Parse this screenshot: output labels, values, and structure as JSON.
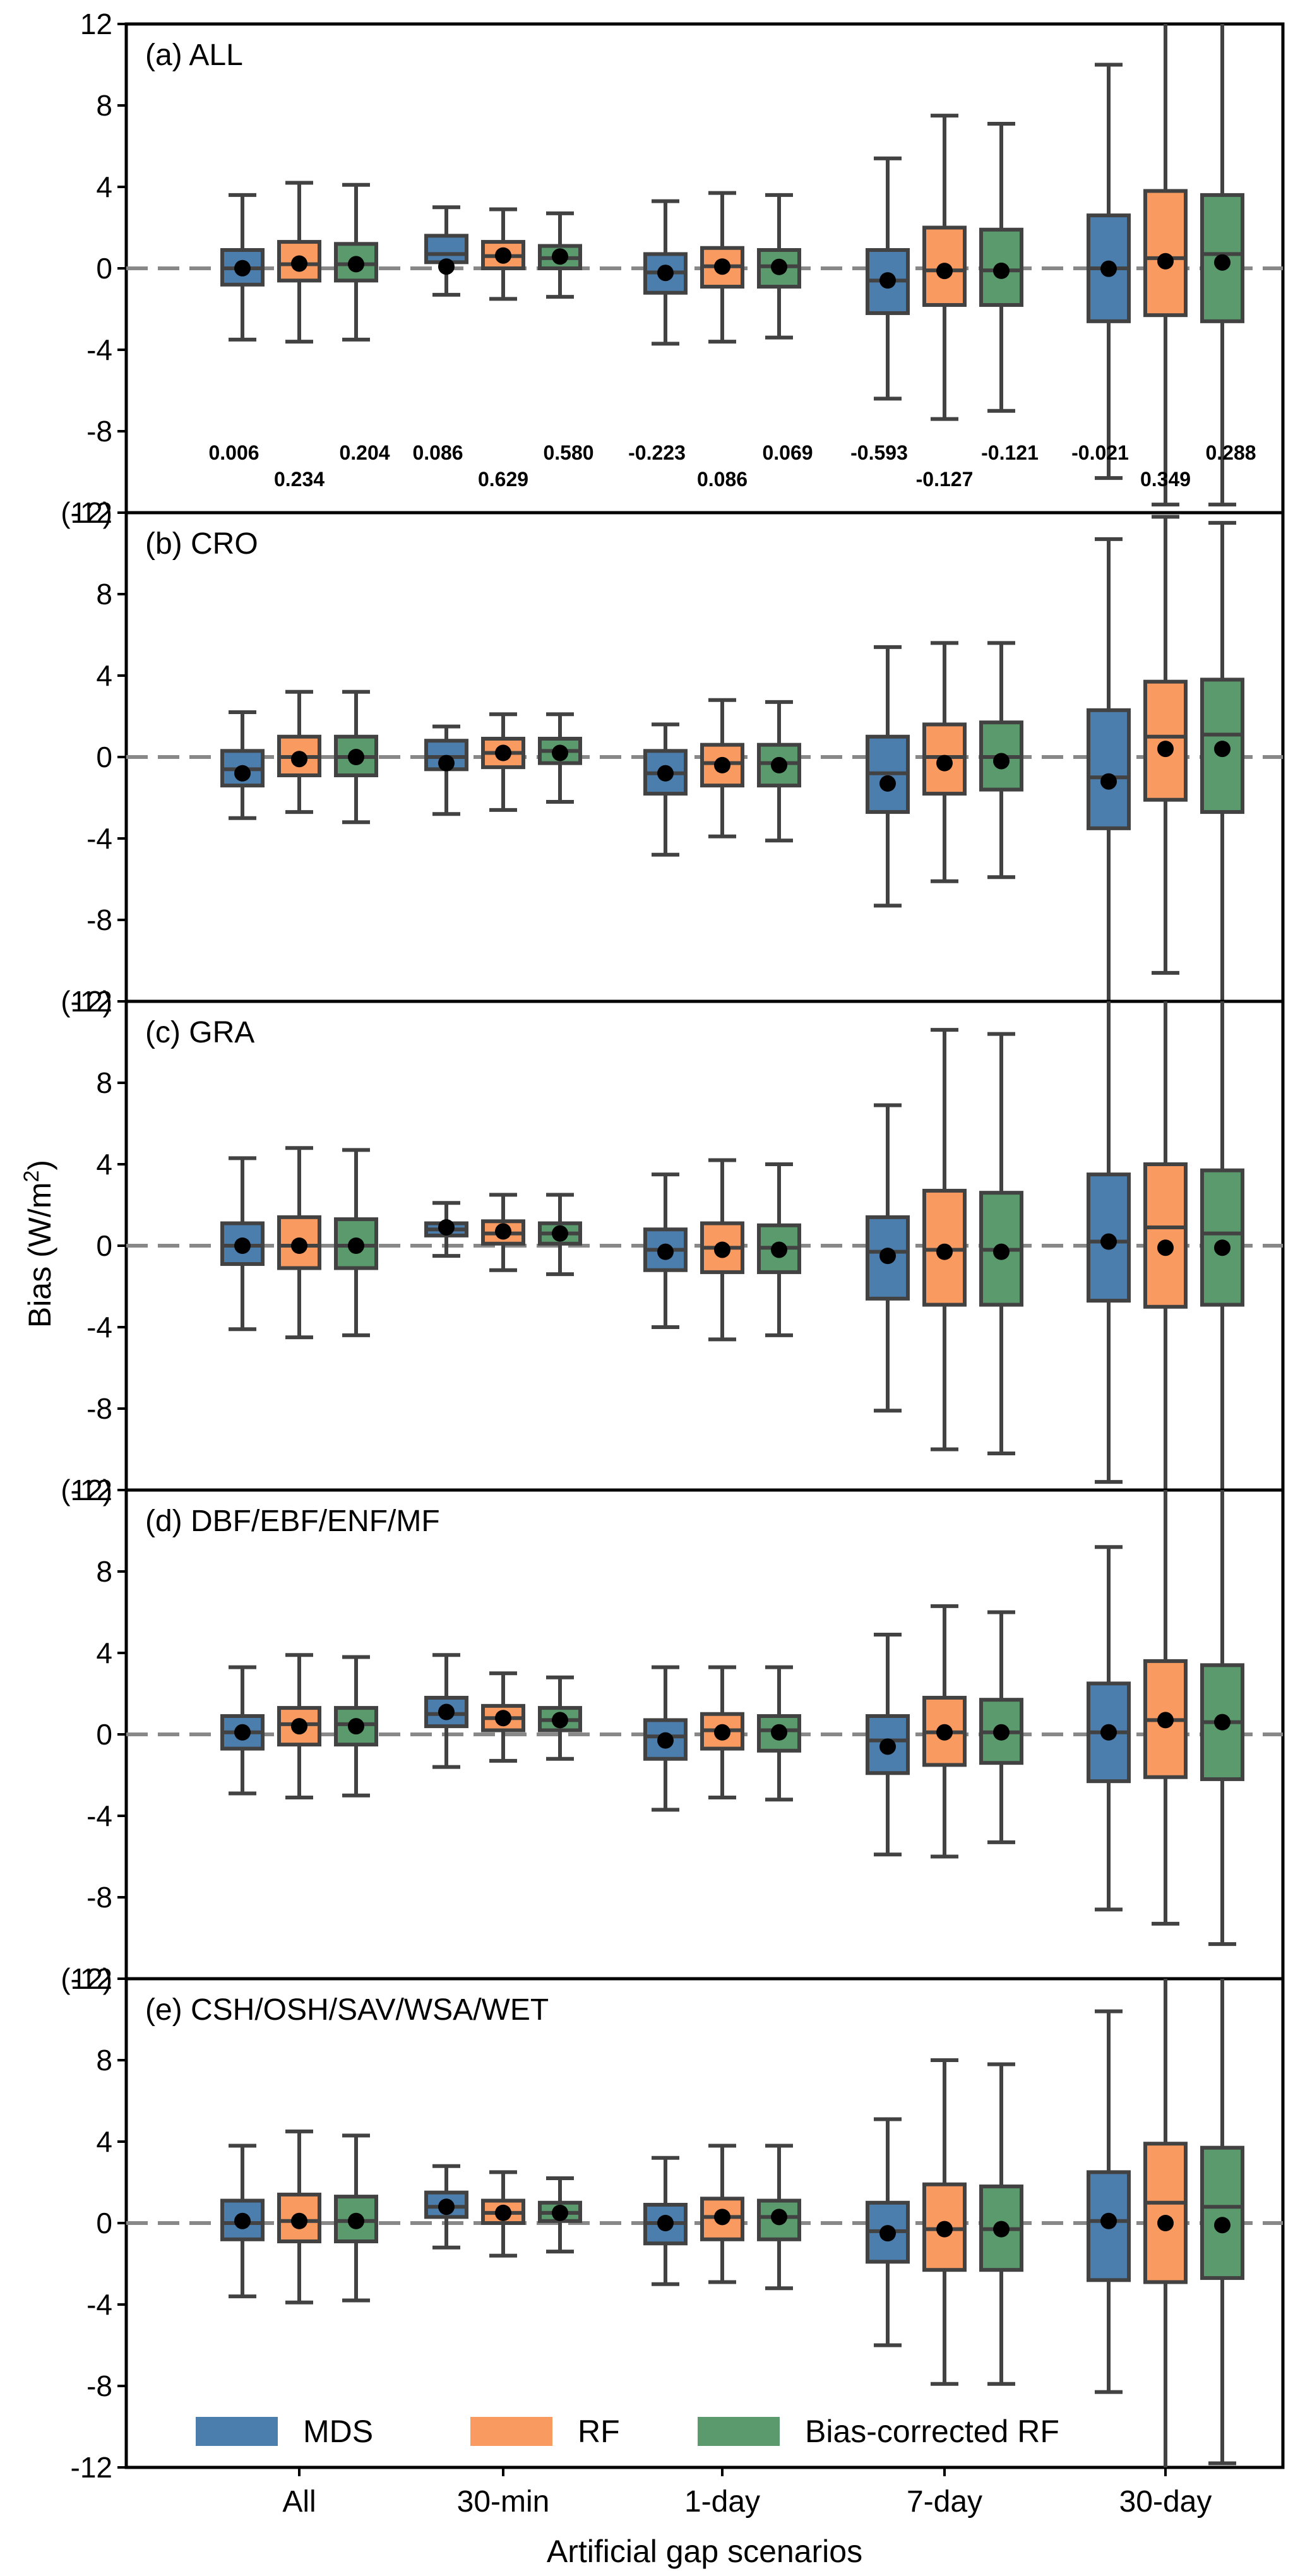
{
  "figure": {
    "xlabel": "Artificial gap scenarios",
    "ylabel_main": "Bias (W/m",
    "ylabel_sup": "2",
    "ylabel_close": ")"
  },
  "legend": [
    {
      "label": "MDS",
      "color": "#4c7ead"
    },
    {
      "label": "RF",
      "color": "#f99a60"
    },
    {
      "label": "Bias-corrected RF",
      "color": "#5a9a6c"
    }
  ],
  "colors": {
    "MDS": "#4c7ead",
    "RF": "#f99a60",
    "Bias-corrected RF": "#5a9a6c",
    "box_edge": "#424242",
    "zero_line": "#888888",
    "mean_marker": "#000000"
  },
  "chart_data": [
    {
      "type": "box",
      "title": "(a) ALL",
      "ytick_labels": [
        "-12",
        "-8",
        "-4",
        "0",
        "4",
        "8",
        "12"
      ],
      "ylim": [
        -12,
        12
      ],
      "categories": [
        "All",
        "30-min",
        "1-day",
        "7-day",
        "30-day"
      ],
      "series_names": [
        "MDS",
        "RF",
        "Bias-corrected RF"
      ],
      "boxes": [
        [
          [
            -3.5,
            -0.8,
            0.0,
            0.9,
            3.6,
            0.006
          ],
          [
            -3.6,
            -0.6,
            0.2,
            1.3,
            4.2,
            0.234
          ],
          [
            -3.5,
            -0.6,
            0.2,
            1.2,
            4.1,
            0.204
          ]
        ],
        [
          [
            -1.3,
            0.3,
            0.7,
            1.6,
            3.0,
            0.086
          ],
          [
            -1.5,
            0.0,
            0.6,
            1.3,
            2.9,
            0.629
          ],
          [
            -1.4,
            0.0,
            0.5,
            1.1,
            2.7,
            0.58
          ]
        ],
        [
          [
            -3.7,
            -1.2,
            -0.2,
            0.7,
            3.3,
            -0.223
          ],
          [
            -3.6,
            -0.9,
            0.1,
            1.0,
            3.7,
            0.086
          ],
          [
            -3.4,
            -0.9,
            0.1,
            0.9,
            3.6,
            0.069
          ]
        ],
        [
          [
            -6.4,
            -2.2,
            -0.6,
            0.9,
            5.4,
            -0.593
          ],
          [
            -7.4,
            -1.8,
            -0.1,
            2.0,
            7.5,
            -0.127
          ],
          [
            -7.0,
            -1.8,
            -0.1,
            1.9,
            7.1,
            -0.121
          ]
        ],
        [
          [
            -10.3,
            -2.6,
            0.0,
            2.6,
            10.0,
            -0.021
          ],
          [
            -11.6,
            -2.3,
            0.5,
            3.8,
            12.5,
            0.349
          ],
          [
            -11.6,
            -2.6,
            0.7,
            3.6,
            12.5,
            0.288
          ]
        ]
      ],
      "mean_labels": [
        [
          "0.006",
          "0.234",
          "0.204"
        ],
        [
          "0.086",
          "0.629",
          "0.580"
        ],
        [
          "-0.223",
          "0.086",
          "0.069"
        ],
        [
          "-0.593",
          "-0.127",
          "-0.121"
        ],
        [
          "-0.021",
          "0.349",
          "0.288"
        ]
      ]
    },
    {
      "type": "box",
      "title": "(b) CRO",
      "ytick_labels": [
        "-12",
        "-8",
        "-4",
        "0",
        "4",
        "8",
        "(12)"
      ],
      "ylim": [
        -12,
        12
      ],
      "categories": [
        "All",
        "30-min",
        "1-day",
        "7-day",
        "30-day"
      ],
      "series_names": [
        "MDS",
        "RF",
        "Bias-corrected RF"
      ],
      "boxes": [
        [
          [
            -3.0,
            -1.4,
            -0.6,
            0.3,
            2.2,
            -0.8
          ],
          [
            -2.7,
            -0.9,
            0.0,
            1.0,
            3.2,
            -0.1
          ],
          [
            -3.2,
            -0.9,
            0.0,
            1.0,
            3.2,
            0.0
          ]
        ],
        [
          [
            -2.8,
            -0.6,
            0.0,
            0.8,
            1.5,
            -0.3
          ],
          [
            -2.6,
            -0.5,
            0.2,
            0.9,
            2.1,
            0.2
          ],
          [
            -2.2,
            -0.3,
            0.3,
            0.9,
            2.1,
            0.2
          ]
        ],
        [
          [
            -4.8,
            -1.8,
            -0.8,
            0.3,
            1.6,
            -0.8
          ],
          [
            -3.9,
            -1.4,
            -0.3,
            0.6,
            2.8,
            -0.4
          ],
          [
            -4.1,
            -1.4,
            -0.3,
            0.6,
            2.7,
            -0.4
          ]
        ],
        [
          [
            -7.3,
            -2.7,
            -0.8,
            1.0,
            5.4,
            -1.3
          ],
          [
            -6.1,
            -1.8,
            0.0,
            1.6,
            5.6,
            -0.3
          ],
          [
            -5.9,
            -1.6,
            0.0,
            1.7,
            5.6,
            -0.2
          ]
        ],
        [
          [
            -12.5,
            -3.5,
            -1.0,
            2.3,
            10.7,
            -1.2
          ],
          [
            -10.6,
            -2.1,
            1.0,
            3.7,
            11.8,
            0.4
          ],
          [
            -12.5,
            -2.7,
            1.1,
            3.8,
            11.5,
            0.4
          ]
        ]
      ]
    },
    {
      "type": "box",
      "title": "(c) GRA",
      "ytick_labels": [
        "-12",
        "-8",
        "-4",
        "0",
        "4",
        "8",
        "(12)"
      ],
      "ylim": [
        -12,
        12
      ],
      "categories": [
        "All",
        "30-min",
        "1-day",
        "7-day",
        "30-day"
      ],
      "series_names": [
        "MDS",
        "RF",
        "Bias-corrected RF"
      ],
      "boxes": [
        [
          [
            -4.1,
            -0.9,
            0.0,
            1.1,
            4.3,
            0.0
          ],
          [
            -4.5,
            -1.1,
            0.0,
            1.4,
            4.8,
            0.0
          ],
          [
            -4.4,
            -1.1,
            0.0,
            1.3,
            4.7,
            0.0
          ]
        ],
        [
          [
            -0.5,
            0.5,
            0.8,
            1.1,
            2.1,
            0.9
          ],
          [
            -1.2,
            0.1,
            0.6,
            1.2,
            2.5,
            0.7
          ],
          [
            -1.4,
            0.1,
            0.6,
            1.1,
            2.5,
            0.6
          ]
        ],
        [
          [
            -4.0,
            -1.2,
            -0.2,
            0.8,
            3.5,
            -0.3
          ],
          [
            -4.6,
            -1.3,
            -0.1,
            1.1,
            4.2,
            -0.2
          ],
          [
            -4.4,
            -1.3,
            -0.1,
            1.0,
            4.0,
            -0.2
          ]
        ],
        [
          [
            -8.1,
            -2.6,
            -0.3,
            1.4,
            6.9,
            -0.5
          ],
          [
            -10.0,
            -2.9,
            -0.2,
            2.7,
            10.6,
            -0.3
          ],
          [
            -10.2,
            -2.9,
            -0.2,
            2.6,
            10.4,
            -0.3
          ]
        ],
        [
          [
            -11.6,
            -2.7,
            0.2,
            3.5,
            12.3,
            0.2
          ],
          [
            -12.5,
            -3.0,
            0.9,
            4.0,
            12.5,
            -0.1
          ],
          [
            -12.5,
            -2.9,
            0.6,
            3.7,
            12.5,
            -0.1
          ]
        ]
      ]
    },
    {
      "type": "box",
      "title": "(d) DBF/EBF/ENF/MF",
      "ytick_labels": [
        "-12",
        "-8",
        "-4",
        "0",
        "4",
        "8",
        "(12)"
      ],
      "ylim": [
        -12,
        12
      ],
      "categories": [
        "All",
        "30-min",
        "1-day",
        "7-day",
        "30-day"
      ],
      "series_names": [
        "MDS",
        "RF",
        "Bias-corrected RF"
      ],
      "boxes": [
        [
          [
            -2.9,
            -0.7,
            0.1,
            0.9,
            3.3,
            0.1
          ],
          [
            -3.1,
            -0.5,
            0.5,
            1.3,
            3.9,
            0.4
          ],
          [
            -3.0,
            -0.5,
            0.5,
            1.3,
            3.8,
            0.4
          ]
        ],
        [
          [
            -1.6,
            0.4,
            1.0,
            1.8,
            3.9,
            1.1
          ],
          [
            -1.3,
            0.2,
            0.8,
            1.4,
            3.0,
            0.8
          ],
          [
            -1.2,
            0.2,
            0.7,
            1.3,
            2.8,
            0.7
          ]
        ],
        [
          [
            -3.7,
            -1.2,
            -0.1,
            0.7,
            3.3,
            -0.3
          ],
          [
            -3.1,
            -0.7,
            0.2,
            1.0,
            3.3,
            0.1
          ],
          [
            -3.2,
            -0.8,
            0.2,
            0.9,
            3.3,
            0.1
          ]
        ],
        [
          [
            -5.9,
            -1.9,
            -0.3,
            0.9,
            4.9,
            -0.6
          ],
          [
            -6.0,
            -1.5,
            0.1,
            1.8,
            6.3,
            0.1
          ],
          [
            -5.3,
            -1.4,
            0.1,
            1.7,
            6.0,
            0.1
          ]
        ],
        [
          [
            -8.6,
            -2.3,
            0.1,
            2.5,
            9.2,
            0.1
          ],
          [
            -9.3,
            -2.1,
            0.7,
            3.6,
            12.5,
            0.7
          ],
          [
            -10.3,
            -2.2,
            0.6,
            3.4,
            12.4,
            0.6
          ]
        ]
      ]
    },
    {
      "type": "box",
      "title": "(e) CSH/OSH/SAV/WSA/WET",
      "ytick_labels": [
        "-12",
        "-8",
        "-4",
        "0",
        "4",
        "8",
        "(12)"
      ],
      "ylim": [
        -12,
        12
      ],
      "categories": [
        "All",
        "30-min",
        "1-day",
        "7-day",
        "30-day"
      ],
      "series_names": [
        "MDS",
        "RF",
        "Bias-corrected RF"
      ],
      "boxes": [
        [
          [
            -3.6,
            -0.8,
            0.0,
            1.1,
            3.8,
            0.1
          ],
          [
            -3.9,
            -0.9,
            0.1,
            1.4,
            4.5,
            0.1
          ],
          [
            -3.8,
            -0.9,
            0.1,
            1.3,
            4.3,
            0.1
          ]
        ],
        [
          [
            -1.2,
            0.3,
            0.8,
            1.5,
            2.8,
            0.8
          ],
          [
            -1.6,
            0.0,
            0.5,
            1.1,
            2.5,
            0.5
          ],
          [
            -1.4,
            0.1,
            0.5,
            1.0,
            2.2,
            0.5
          ]
        ],
        [
          [
            -3.0,
            -1.0,
            0.0,
            0.9,
            3.2,
            0.0
          ],
          [
            -2.9,
            -0.8,
            0.3,
            1.2,
            3.8,
            0.3
          ],
          [
            -3.2,
            -0.8,
            0.3,
            1.1,
            3.8,
            0.3
          ]
        ],
        [
          [
            -6.0,
            -1.9,
            -0.4,
            1.0,
            5.1,
            -0.5
          ],
          [
            -7.9,
            -2.3,
            -0.3,
            1.9,
            8.0,
            -0.3
          ],
          [
            -7.9,
            -2.3,
            -0.3,
            1.8,
            7.8,
            -0.3
          ]
        ],
        [
          [
            -8.3,
            -2.8,
            0.1,
            2.5,
            10.4,
            0.1
          ],
          [
            -12.5,
            -2.9,
            1.0,
            3.9,
            12.5,
            0.0
          ],
          [
            -11.8,
            -2.7,
            0.8,
            3.7,
            12.5,
            -0.1
          ]
        ]
      ]
    }
  ]
}
